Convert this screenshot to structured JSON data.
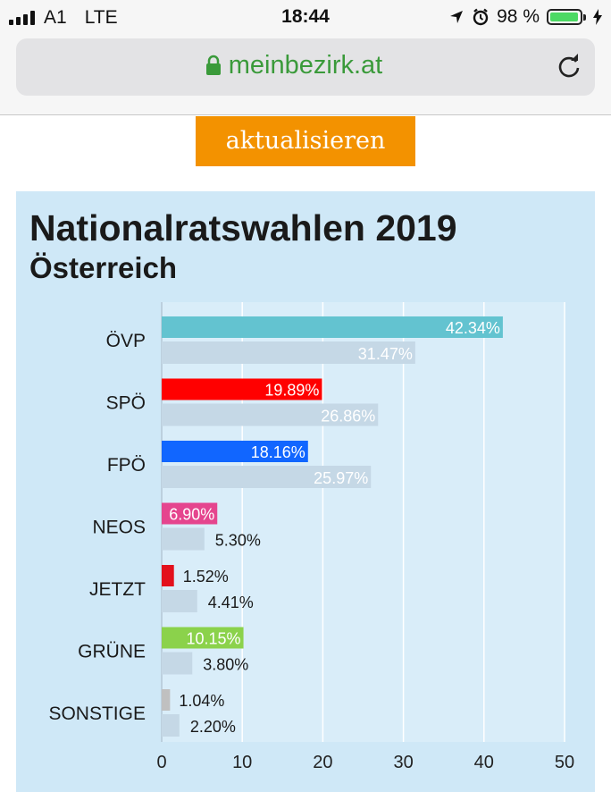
{
  "status_bar": {
    "carrier": "A1",
    "network": "LTE",
    "time": "18:44",
    "battery": "98 %",
    "battery_level": 0.98
  },
  "browser": {
    "url": "meinbezirk.at"
  },
  "button": {
    "label": "aktualisieren"
  },
  "colors": {
    "button": "#f39200",
    "card_bg": "#cfe8f7",
    "prev_bar": "#c5d8e6"
  },
  "chart_data": {
    "type": "bar",
    "orientation": "horizontal",
    "title": "Nationalratswahlen 2019",
    "subtitle": "Österreich",
    "categories": [
      "ÖVP",
      "SPÖ",
      "FPÖ",
      "NEOS",
      "JETZT",
      "GRÜNE",
      "SONSTIGE"
    ],
    "series": [
      {
        "values": [
          42.34,
          19.89,
          18.16,
          6.9,
          1.52,
          10.15,
          1.04
        ],
        "labels": [
          "42.34%",
          "19.89%",
          "18.16%",
          "6.90%",
          "1.52%",
          "10.15%",
          "1.04%"
        ],
        "colors": [
          "#63c3d0",
          "#ff0000",
          "#1166ff",
          "#e5458e",
          "#e3101c",
          "#8bd24b",
          "#c0c0c0"
        ]
      },
      {
        "values": [
          31.47,
          26.86,
          25.97,
          5.3,
          4.41,
          3.8,
          2.2
        ],
        "labels": [
          "31.47%",
          "26.86%",
          "25.97%",
          "5.30%",
          "4.41%",
          "3.80%",
          "2.20%"
        ],
        "color": "#c5d8e6"
      }
    ],
    "xlim": [
      0,
      50
    ],
    "xticks": [
      "0",
      "10",
      "20",
      "30",
      "40",
      "50"
    ],
    "grid": true
  }
}
